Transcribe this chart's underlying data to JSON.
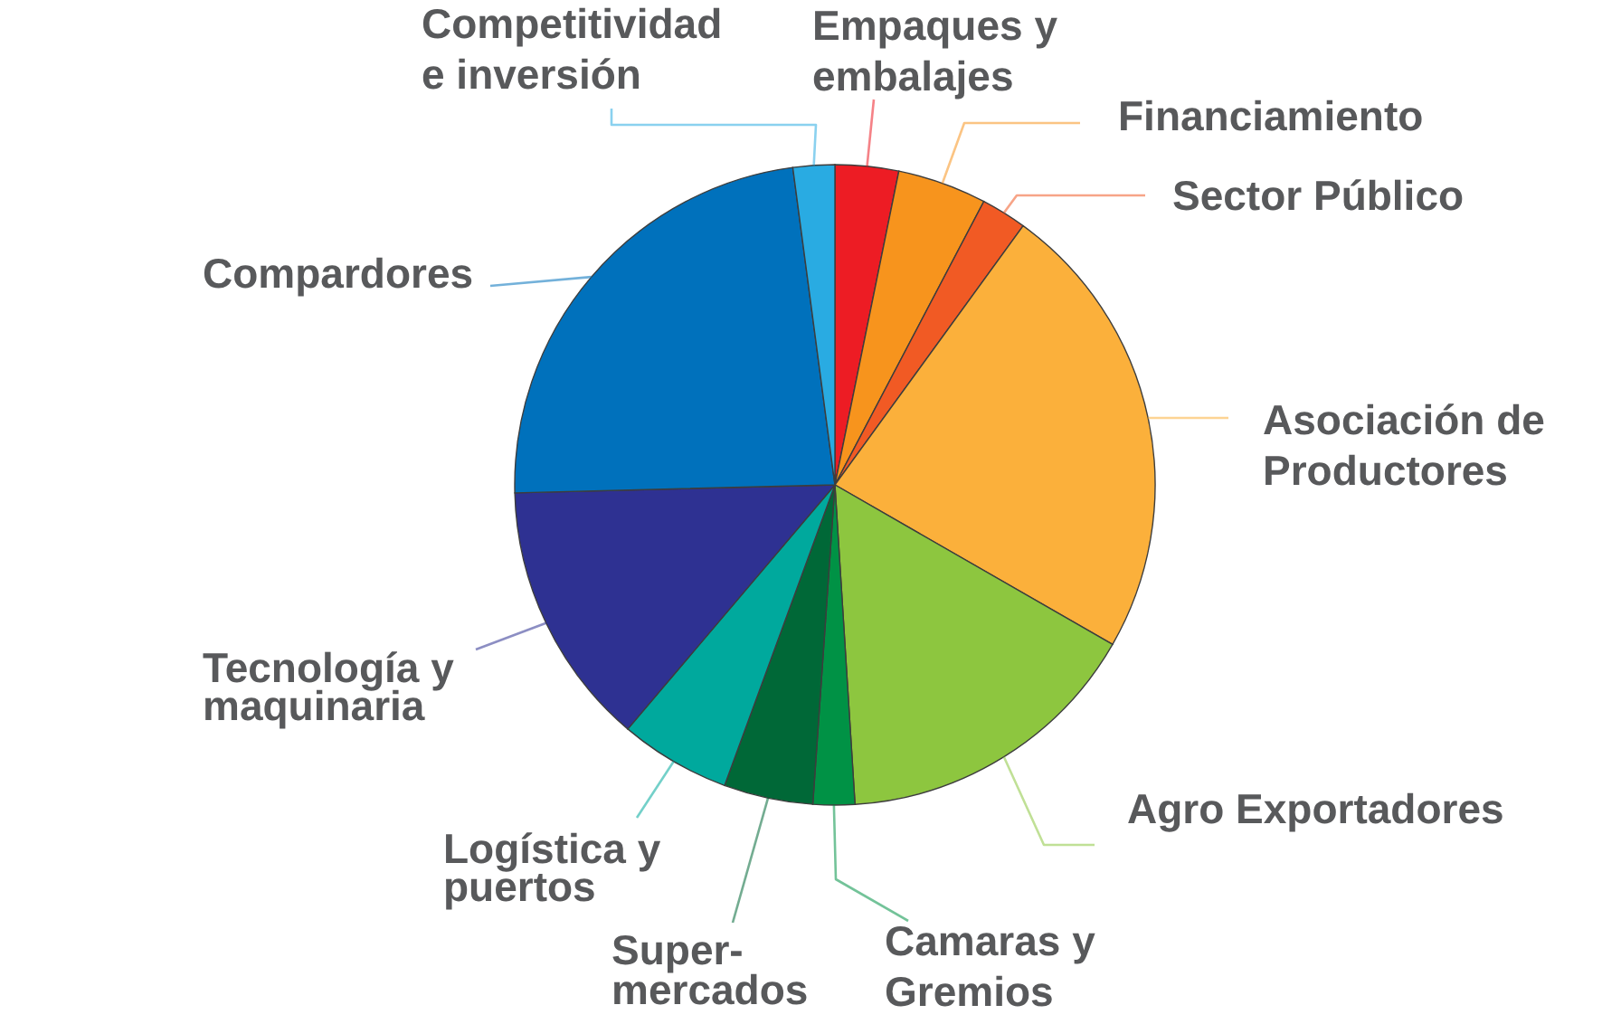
{
  "chart_data": {
    "type": "pie",
    "categories": [
      "Empaques y\nembalajes",
      "Financiamiento",
      "Sector Público",
      "Asociación de\nProductores",
      "Agro Exportadores",
      "Camaras y\nGremios",
      "Super-\nmercados",
      "Logística y\npuertos",
      "Tecnología y\nmaquinaria",
      "Compardores",
      "Competitividad\ne inversión"
    ],
    "values": [
      3.2,
      4.5,
      2.3,
      23.3,
      15.7,
      2.1,
      4.5,
      5.6,
      13.4,
      23.3,
      2.1
    ],
    "colors": [
      "#ed1c24",
      "#f7941d",
      "#f15a24",
      "#fbb03b",
      "#8dc63f",
      "#009245",
      "#006837",
      "#00a99d",
      "#2e3192",
      "#0071bc",
      "#29abe2"
    ]
  }
}
